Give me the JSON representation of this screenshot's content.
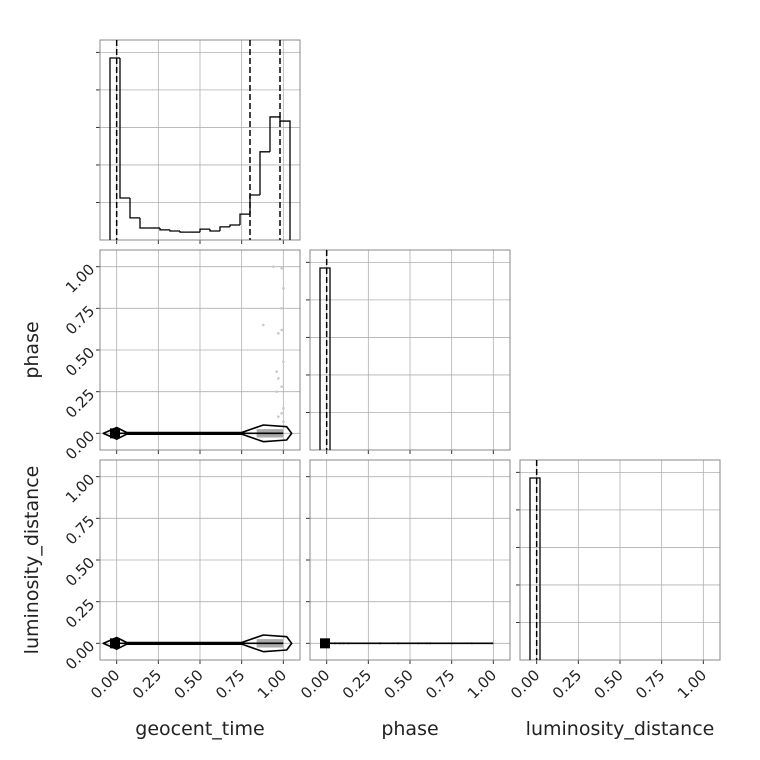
{
  "chart_data": [
    {
      "type": "histogram",
      "bins": [
        -0.04,
        0.02,
        0.08,
        0.14,
        0.2,
        0.26,
        0.32,
        0.38,
        0.44,
        0.5,
        0.56,
        0.62,
        0.68,
        0.74,
        0.8,
        0.86,
        0.92,
        0.98,
        1.04
      ],
      "values": [
        4.85,
        1.12,
        0.59,
        0.32,
        0.32,
        0.27,
        0.24,
        0.21,
        0.21,
        0.29,
        0.24,
        0.35,
        0.4,
        0.69,
        1.2,
        2.35,
        3.28,
        3.17
      ],
      "quantiles": [
        0.0,
        0.8,
        0.98
      ],
      "color": "#000000",
      "xlim": [
        -0.1,
        1.1
      ],
      "ylim": [
        0,
        5.33
      ],
      "xticks": [
        0,
        0.25,
        0.5,
        0.75,
        1
      ],
      "yticks": [
        1,
        2,
        3,
        4,
        5
      ],
      "grid": true
    },
    {
      "type": "scatter",
      "ylabel": "phase",
      "x": [
        0.94,
        0.99,
        1.0,
        0.99,
        0.97,
        0.99,
        1.0,
        0.96,
        0.97,
        0.99,
        0.96,
        1.0,
        0.99,
        0.97,
        1.0,
        0.88
      ],
      "y": [
        1.0,
        0.99,
        0.87,
        0.75,
        0.6,
        0.62,
        0.43,
        0.37,
        0.33,
        0.28,
        0.25,
        0.15,
        0.12,
        0.1,
        0.07,
        0.65
      ],
      "color": "#c8c8c8",
      "peak": {
        "x": -0.01,
        "y": 0
      },
      "contours": [
        {
          "x": [
            0.84,
            1.0,
            1.0,
            0.84
          ],
          "y": [
            0.025,
            0.025,
            -0.025,
            -0.025
          ],
          "fill": "#aaaaaa"
        },
        {
          "x": [
            -0.08,
            0.0,
            0.06,
            0.75,
            0.88,
            1.02,
            1.05,
            1.02,
            0.88,
            0.75,
            0.06,
            0.0
          ],
          "y": [
            0,
            0.035,
            0.005,
            0.005,
            0.05,
            0.04,
            0,
            -0.04,
            -0.05,
            -0.005,
            -0.005,
            -0.035
          ],
          "fill": "none"
        }
      ],
      "xlim": [
        -0.1,
        1.1
      ],
      "ylim": [
        -0.1,
        1.1
      ],
      "xticks": [
        0,
        0.25,
        0.5,
        0.75,
        1
      ],
      "yticks": [
        {
          "value": 0,
          "label": "0.00"
        },
        {
          "value": 0.25,
          "label": "0.25"
        },
        {
          "value": 0.5,
          "label": "0.50"
        },
        {
          "value": 0.75,
          "label": "0.75"
        },
        {
          "value": 1,
          "label": "1.00"
        }
      ],
      "grid": true
    },
    {
      "type": "histogram",
      "bins": [
        -0.04,
        0.02
      ],
      "values": [
        4.85
      ],
      "quantiles": [
        0.0
      ],
      "color": "#000000",
      "xlim": [
        -0.1,
        1.1
      ],
      "ylim": [
        0,
        5.33
      ],
      "xticks": [
        0,
        0.25,
        0.5,
        0.75,
        1
      ],
      "yticks": [
        1,
        2,
        3,
        4,
        5
      ],
      "grid": true
    },
    {
      "type": "scatter",
      "xlabel": "geocent_time",
      "ylabel": "luminosity_distance",
      "x": [],
      "y": [],
      "color": "#c8c8c8",
      "peak": {
        "x": -0.01,
        "y": 0
      },
      "contours": [
        {
          "x": [
            0.84,
            1.0,
            1.0,
            0.84
          ],
          "y": [
            0.025,
            0.025,
            -0.025,
            -0.025
          ],
          "fill": "#aaaaaa"
        },
        {
          "x": [
            -0.08,
            0.0,
            0.06,
            0.75,
            0.88,
            1.02,
            1.05,
            1.02,
            0.88,
            0.75,
            0.06,
            0.0
          ],
          "y": [
            0,
            0.035,
            0.005,
            0.005,
            0.05,
            0.04,
            0,
            -0.04,
            -0.05,
            -0.005,
            -0.005,
            -0.035
          ],
          "fill": "none"
        }
      ],
      "xlim": [
        -0.1,
        1.1
      ],
      "ylim": [
        -0.1,
        1.1
      ],
      "xticks": [
        {
          "value": 0,
          "label": "0.00"
        },
        {
          "value": 0.25,
          "label": "0.25"
        },
        {
          "value": 0.5,
          "label": "0.50"
        },
        {
          "value": 0.75,
          "label": "0.75"
        },
        {
          "value": 1,
          "label": "1.00"
        }
      ],
      "yticks": [
        {
          "value": 0,
          "label": "0.00"
        },
        {
          "value": 0.25,
          "label": "0.25"
        },
        {
          "value": 0.5,
          "label": "0.50"
        },
        {
          "value": 0.75,
          "label": "0.75"
        },
        {
          "value": 1,
          "label": "1.00"
        }
      ],
      "grid": true
    },
    {
      "type": "scatter",
      "xlabel": "phase",
      "x": [
        0.05,
        0.08,
        0.1,
        0.13,
        0.25,
        0.32,
        0.43,
        0.55,
        0.6,
        0.62,
        0.75,
        0.87,
        0.99,
        1.0
      ],
      "y": [
        0,
        0,
        0,
        0,
        0,
        0,
        0,
        0,
        0,
        0,
        0,
        0,
        0,
        0
      ],
      "color": "#c8c8c8",
      "peak": {
        "x": -0.01,
        "y": 0
      },
      "contours": [],
      "xlim": [
        -0.1,
        1.1
      ],
      "ylim": [
        -0.1,
        1.1
      ],
      "xticks": [
        {
          "value": 0,
          "label": "0.00"
        },
        {
          "value": 0.25,
          "label": "0.25"
        },
        {
          "value": 0.5,
          "label": "0.50"
        },
        {
          "value": 0.75,
          "label": "0.75"
        },
        {
          "value": 1,
          "label": "1.00"
        }
      ],
      "yticks": [
        0,
        0.25,
        0.5,
        0.75,
        1
      ],
      "grid": true
    },
    {
      "type": "histogram",
      "xlabel": "luminosity_distance",
      "bins": [
        -0.04,
        0.02
      ],
      "values": [
        4.85
      ],
      "quantiles": [
        0.0
      ],
      "color": "#000000",
      "xlim": [
        -0.1,
        1.1
      ],
      "ylim": [
        0,
        5.33
      ],
      "xticks": [
        {
          "value": 0,
          "label": "0.00"
        },
        {
          "value": 0.25,
          "label": "0.25"
        },
        {
          "value": 0.5,
          "label": "0.50"
        },
        {
          "value": 0.75,
          "label": "0.75"
        },
        {
          "value": 1,
          "label": "1.00"
        }
      ],
      "yticks": [
        1,
        2,
        3,
        4,
        5
      ],
      "grid": true
    }
  ]
}
